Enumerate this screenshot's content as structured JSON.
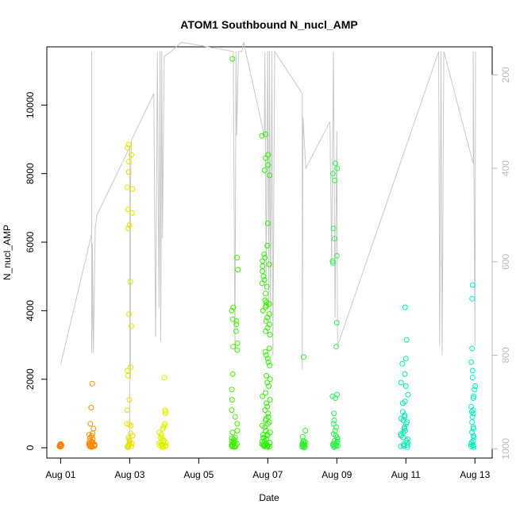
{
  "chart_data": {
    "type": "scatter",
    "title": "ATOM1 Southbound N_nucl_AMP",
    "xlabel": "Date",
    "ylabel": "N_nucl_AMP",
    "x_tick_labels": [
      "Aug 01",
      "Aug 03",
      "Aug 05",
      "Aug 07",
      "Aug 09",
      "Aug 11",
      "Aug 13"
    ],
    "x_tick_values": [
      0,
      2,
      4,
      6,
      8,
      10,
      12
    ],
    "xlim": [
      -0.4,
      12.5
    ],
    "y_ticks": [
      0,
      2000,
      4000,
      6000,
      8000,
      10000
    ],
    "ylim": [
      -300,
      11700
    ],
    "right_axis": {
      "ticks": [
        200,
        400,
        600,
        800,
        1000
      ],
      "reversed": true,
      "range": [
        140,
        1020
      ],
      "color": "#bbbbbb"
    },
    "grid": false,
    "point_style": "open-circle",
    "clusters": [
      {
        "day": 0.0,
        "color": "#ff7f00",
        "spread": 0.04,
        "values": [
          30,
          50,
          60,
          80,
          100,
          110,
          40,
          70
        ]
      },
      {
        "day": 0.9,
        "color": "#ff8c00",
        "spread": 0.09,
        "values": [
          1870,
          1170,
          700,
          560,
          420,
          380,
          350,
          290,
          250,
          200,
          180,
          160,
          140,
          120,
          100,
          90,
          80,
          60,
          50,
          40,
          30,
          20,
          150,
          110,
          70,
          65,
          45,
          35,
          25
        ]
      },
      {
        "day": 2.0,
        "color": "#e8e000",
        "spread": 0.09,
        "values": [
          8850,
          8750,
          8550,
          8350,
          8050,
          7600,
          7550,
          6950,
          6850,
          6500,
          6400,
          4850,
          3900,
          3550,
          2350,
          2250,
          2100,
          1400,
          1100,
          700,
          680,
          650,
          420,
          350,
          300,
          250,
          200,
          150,
          120,
          100,
          80,
          60,
          50,
          40,
          30,
          20
        ]
      },
      {
        "day": 2.95,
        "color": "#e0f000",
        "spread": 0.1,
        "values": [
          2050,
          1100,
          1050,
          1000,
          700,
          650,
          600,
          550,
          450,
          400,
          350,
          300,
          250,
          220,
          200,
          180,
          150,
          130,
          100,
          90,
          80,
          70,
          60,
          50,
          40,
          30,
          20
        ]
      },
      {
        "day": 5.05,
        "color": "#40f000",
        "spread": 0.1,
        "values": [
          11350,
          5550,
          5200,
          4100,
          4000,
          3750,
          3700,
          3600,
          3400,
          3050,
          2950,
          2850,
          2150,
          1700,
          1400,
          1100,
          900,
          700,
          500,
          450,
          300,
          280,
          250,
          200,
          180,
          160,
          150,
          130,
          110,
          100,
          90,
          70,
          60,
          50,
          40,
          30,
          20
        ]
      },
      {
        "day": 5.95,
        "color": "#30f000",
        "spread": 0.12,
        "values": [
          9150,
          9100,
          8550,
          8450,
          8250,
          8100,
          7950,
          6550,
          5900,
          5650,
          5550,
          5450,
          5350,
          5300,
          5150,
          5000,
          4900,
          4800,
          4700,
          4500,
          4300,
          4250,
          4200,
          4150,
          4100,
          4000,
          3900,
          3800,
          3700,
          3600,
          3500,
          3400,
          3300,
          2900,
          2800,
          2700,
          2600,
          2500,
          2400,
          2100,
          2000,
          1900,
          1800,
          1600,
          1500,
          1400,
          1300,
          1200,
          1100,
          1000,
          900,
          850,
          800,
          750,
          700,
          650,
          600,
          500,
          450,
          400,
          380,
          350,
          300,
          280,
          250,
          200,
          180,
          150,
          130,
          100,
          90,
          80,
          70,
          60,
          50,
          40,
          30,
          20
        ]
      },
      {
        "day": 7.05,
        "color": "#30f030",
        "spread": 0.06,
        "values": [
          2650,
          500,
          320,
          200,
          180,
          160,
          140,
          120,
          100,
          90,
          80,
          70,
          60,
          50,
          40,
          30,
          20,
          10
        ]
      },
      {
        "day": 7.95,
        "color": "#30f050",
        "spread": 0.08,
        "values": [
          8300,
          8150,
          8000,
          7800,
          6400,
          6100,
          5450,
          5400,
          2950,
          1550,
          1500,
          1450,
          1000,
          800,
          700,
          600,
          500,
          400,
          350,
          300,
          250,
          200,
          180,
          150,
          130,
          100,
          90,
          80,
          70,
          60,
          50,
          40,
          30,
          20
        ]
      },
      {
        "day": 8.0,
        "color": "#30f050",
        "spread": 0.0,
        "values": [
          5600,
          3650
        ]
      },
      {
        "day": 9.95,
        "color": "#00e8b0",
        "spread": 0.12,
        "values": [
          4100,
          3150,
          2600,
          2450,
          2150,
          1900,
          1800,
          1550,
          1350,
          1300,
          1050,
          950,
          900,
          850,
          800,
          750,
          700,
          600,
          550,
          500,
          450,
          400,
          350,
          300,
          250,
          200,
          150,
          100,
          80,
          60,
          40,
          20
        ]
      },
      {
        "day": 11.95,
        "color": "#00f0c0",
        "spread": 0.06,
        "values": [
          4750,
          4350,
          2900,
          2500,
          2250,
          2050,
          1800,
          1700,
          1500,
          1450,
          1200,
          1100,
          1050,
          1000,
          900,
          750,
          600,
          550,
          450,
          350,
          300,
          200,
          150,
          100,
          80,
          60,
          40,
          20
        ]
      }
    ],
    "right_axis_line": [
      [
        0.0,
        820
      ],
      [
        0.9,
        540
      ],
      [
        0.9,
        290
      ],
      [
        0.9,
        150
      ],
      [
        0.9,
        640
      ],
      [
        0.9,
        795
      ],
      [
        0.92,
        700
      ],
      [
        0.92,
        560
      ],
      [
        0.95,
        795
      ],
      [
        1.0,
        530
      ],
      [
        1.05,
        500
      ],
      [
        2.0,
        355
      ],
      [
        2.0,
        990
      ],
      [
        2.0,
        370
      ],
      [
        2.0,
        780
      ],
      [
        2.02,
        850
      ],
      [
        2.02,
        460
      ],
      [
        2.05,
        340
      ],
      [
        2.7,
        240
      ],
      [
        2.75,
        760
      ],
      [
        2.76,
        700
      ],
      [
        2.8,
        150
      ],
      [
        2.85,
        700
      ],
      [
        2.88,
        150
      ],
      [
        2.9,
        770
      ],
      [
        2.93,
        150
      ],
      [
        2.95,
        550
      ],
      [
        3.0,
        160
      ],
      [
        3.2,
        150
      ],
      [
        3.5,
        130
      ],
      [
        5.0,
        150
      ],
      [
        5.05,
        790
      ],
      [
        5.08,
        150
      ],
      [
        5.1,
        330
      ],
      [
        5.15,
        150
      ],
      [
        5.2,
        150
      ],
      [
        5.25,
        150
      ],
      [
        5.3,
        130
      ],
      [
        5.9,
        330
      ],
      [
        5.92,
        150
      ],
      [
        5.95,
        650
      ],
      [
        6.0,
        150
      ],
      [
        6.03,
        700
      ],
      [
        6.05,
        150
      ],
      [
        6.08,
        730
      ],
      [
        6.12,
        150
      ],
      [
        6.15,
        800
      ],
      [
        6.2,
        150
      ],
      [
        7.0,
        240
      ],
      [
        7.0,
        830
      ],
      [
        7.02,
        290
      ],
      [
        7.1,
        400
      ],
      [
        7.8,
        300
      ],
      [
        7.85,
        600
      ],
      [
        7.9,
        150
      ],
      [
        7.95,
        720
      ],
      [
        8.0,
        320
      ],
      [
        8.02,
        780
      ],
      [
        10.95,
        150
      ],
      [
        10.98,
        780
      ],
      [
        11.02,
        150
      ],
      [
        11.05,
        800
      ],
      [
        11.1,
        150
      ],
      [
        11.95,
        390
      ],
      [
        11.95,
        150
      ],
      [
        12.0,
        780
      ],
      [
        12.02,
        150
      ]
    ]
  }
}
